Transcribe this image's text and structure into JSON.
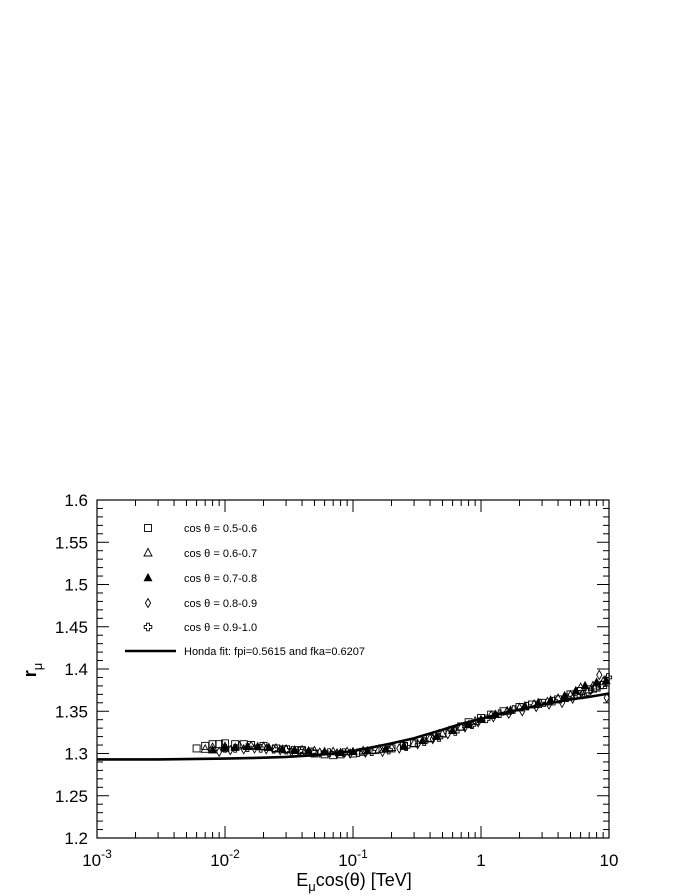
{
  "chart_data": {
    "type": "scatter",
    "x_scale": "log",
    "xlim": [
      0.001,
      10
    ],
    "ylim": [
      1.2,
      1.6
    ],
    "xlabel": {
      "main": "E",
      "sub": "μ",
      "rest": "cos(θ) [TeV]"
    },
    "ylabel": {
      "main": "r",
      "sub": "μ"
    },
    "x_tick_labels": [
      {
        "value": 0.001,
        "base": "10",
        "exp": "-3"
      },
      {
        "value": 0.01,
        "base": "10",
        "exp": "-2"
      },
      {
        "value": 0.1,
        "base": "10",
        "exp": "-1"
      },
      {
        "value": 1,
        "base": "1",
        "exp": ""
      },
      {
        "value": 10,
        "base": "10",
        "exp": ""
      }
    ],
    "y_tick_labels": [
      "1.2",
      "1.25",
      "1.3",
      "1.35",
      "1.4",
      "1.45",
      "1.5",
      "1.55",
      "1.6"
    ],
    "y_ticks": [
      1.2,
      1.25,
      1.3,
      1.35,
      1.4,
      1.45,
      1.5,
      1.55,
      1.6
    ],
    "legend": [
      {
        "marker": "open-square",
        "label": "cos θ = 0.5-0.6"
      },
      {
        "marker": "open-triangle",
        "label": "cos θ = 0.6-0.7"
      },
      {
        "marker": "filled-triangle",
        "label": "cos θ = 0.7-0.8"
      },
      {
        "marker": "open-diamond",
        "label": "cos θ = 0.8-0.9"
      },
      {
        "marker": "open-cross",
        "label": "cos θ = 0.9-1.0"
      },
      {
        "marker": "line",
        "label": "Honda fit: fpi=0.5615 and fka=0.6207"
      }
    ],
    "series": [
      {
        "marker": "open-square",
        "points": [
          [
            0.006,
            1.306
          ],
          [
            0.007,
            1.309
          ],
          [
            0.008,
            1.311
          ],
          [
            0.009,
            1.311
          ],
          [
            0.01,
            1.312
          ],
          [
            0.012,
            1.311
          ],
          [
            0.014,
            1.311
          ],
          [
            0.016,
            1.31
          ],
          [
            0.02,
            1.309
          ],
          [
            0.025,
            1.306
          ],
          [
            0.03,
            1.305
          ],
          [
            0.035,
            1.304
          ],
          [
            0.04,
            1.304
          ],
          [
            0.05,
            1.3
          ],
          [
            0.06,
            1.299
          ],
          [
            0.07,
            1.298
          ],
          [
            0.08,
            1.299
          ],
          [
            0.1,
            1.3
          ],
          [
            0.12,
            1.302
          ],
          [
            0.15,
            1.304
          ],
          [
            0.2,
            1.306
          ],
          [
            0.25,
            1.309
          ],
          [
            0.3,
            1.312
          ],
          [
            0.4,
            1.318
          ],
          [
            0.5,
            1.324
          ],
          [
            0.6,
            1.328
          ],
          [
            0.7,
            1.332
          ],
          [
            0.8,
            1.337
          ],
          [
            1.0,
            1.342
          ],
          [
            1.2,
            1.346
          ],
          [
            1.5,
            1.35
          ],
          [
            2.0,
            1.355
          ],
          [
            2.5,
            1.358
          ],
          [
            3.0,
            1.36
          ],
          [
            4.0,
            1.364
          ],
          [
            5.0,
            1.37
          ],
          [
            6.0,
            1.374
          ],
          [
            7.0,
            1.376
          ],
          [
            8.0,
            1.378
          ],
          [
            9.0,
            1.381
          ]
        ]
      },
      {
        "marker": "open-triangle",
        "points": [
          [
            0.007,
            1.305
          ],
          [
            0.008,
            1.307
          ],
          [
            0.01,
            1.308
          ],
          [
            0.013,
            1.309
          ],
          [
            0.016,
            1.309
          ],
          [
            0.02,
            1.308
          ],
          [
            0.025,
            1.306
          ],
          [
            0.03,
            1.305
          ],
          [
            0.04,
            1.304
          ],
          [
            0.05,
            1.303
          ],
          [
            0.07,
            1.302
          ],
          [
            0.09,
            1.302
          ],
          [
            0.12,
            1.303
          ],
          [
            0.16,
            1.305
          ],
          [
            0.2,
            1.307
          ],
          [
            0.3,
            1.312
          ],
          [
            0.4,
            1.318
          ],
          [
            0.5,
            1.323
          ],
          [
            0.7,
            1.331
          ],
          [
            0.9,
            1.338
          ],
          [
            1.2,
            1.345
          ],
          [
            1.6,
            1.35
          ],
          [
            2.0,
            1.354
          ],
          [
            2.6,
            1.358
          ],
          [
            3.3,
            1.361
          ],
          [
            4.0,
            1.365
          ],
          [
            5.0,
            1.369
          ],
          [
            6.0,
            1.378
          ],
          [
            7.5,
            1.38
          ],
          [
            9.0,
            1.385
          ]
        ]
      },
      {
        "marker": "filled-triangle",
        "points": [
          [
            0.008,
            1.304
          ],
          [
            0.01,
            1.306
          ],
          [
            0.012,
            1.307
          ],
          [
            0.015,
            1.308
          ],
          [
            0.018,
            1.308
          ],
          [
            0.022,
            1.307
          ],
          [
            0.028,
            1.305
          ],
          [
            0.035,
            1.304
          ],
          [
            0.045,
            1.303
          ],
          [
            0.06,
            1.302
          ],
          [
            0.08,
            1.301
          ],
          [
            0.1,
            1.302
          ],
          [
            0.13,
            1.303
          ],
          [
            0.18,
            1.305
          ],
          [
            0.25,
            1.309
          ],
          [
            0.35,
            1.315
          ],
          [
            0.45,
            1.32
          ],
          [
            0.6,
            1.327
          ],
          [
            0.8,
            1.334
          ],
          [
            1.0,
            1.34
          ],
          [
            1.3,
            1.346
          ],
          [
            1.7,
            1.351
          ],
          [
            2.2,
            1.356
          ],
          [
            2.8,
            1.36
          ],
          [
            3.5,
            1.363
          ],
          [
            4.5,
            1.368
          ],
          [
            5.5,
            1.374
          ],
          [
            6.5,
            1.38
          ],
          [
            8.0,
            1.384
          ],
          [
            9.5,
            1.386
          ]
        ]
      },
      {
        "marker": "open-diamond",
        "points": [
          [
            0.009,
            1.302
          ],
          [
            0.011,
            1.304
          ],
          [
            0.014,
            1.305
          ],
          [
            0.017,
            1.306
          ],
          [
            0.021,
            1.305
          ],
          [
            0.027,
            1.304
          ],
          [
            0.033,
            1.302
          ],
          [
            0.042,
            1.302
          ],
          [
            0.055,
            1.301
          ],
          [
            0.075,
            1.3
          ],
          [
            0.095,
            1.3
          ],
          [
            0.125,
            1.301
          ],
          [
            0.17,
            1.302
          ],
          [
            0.23,
            1.306
          ],
          [
            0.32,
            1.311
          ],
          [
            0.42,
            1.317
          ],
          [
            0.55,
            1.323
          ],
          [
            0.75,
            1.331
          ],
          [
            0.95,
            1.337
          ],
          [
            1.25,
            1.343
          ],
          [
            1.65,
            1.347
          ],
          [
            2.1,
            1.35
          ],
          [
            2.7,
            1.355
          ],
          [
            3.4,
            1.358
          ],
          [
            4.3,
            1.36
          ],
          [
            5.2,
            1.365
          ],
          [
            6.2,
            1.37
          ],
          [
            7.2,
            1.375
          ],
          [
            8.4,
            1.393
          ],
          [
            9.6,
            1.366
          ]
        ]
      },
      {
        "marker": "open-cross",
        "points": [
          [
            0.01,
            1.306
          ],
          [
            0.012,
            1.306
          ],
          [
            0.015,
            1.307
          ],
          [
            0.019,
            1.306
          ],
          [
            0.024,
            1.305
          ],
          [
            0.03,
            1.304
          ],
          [
            0.038,
            1.303
          ],
          [
            0.048,
            1.302
          ],
          [
            0.065,
            1.301
          ],
          [
            0.085,
            1.301
          ],
          [
            0.11,
            1.301
          ],
          [
            0.14,
            1.302
          ],
          [
            0.19,
            1.304
          ],
          [
            0.26,
            1.308
          ],
          [
            0.36,
            1.314
          ],
          [
            0.47,
            1.319
          ],
          [
            0.63,
            1.326
          ],
          [
            0.85,
            1.334
          ],
          [
            1.1,
            1.341
          ],
          [
            1.4,
            1.347
          ],
          [
            1.8,
            1.352
          ],
          [
            2.3,
            1.356
          ],
          [
            2.9,
            1.359
          ],
          [
            3.7,
            1.362
          ],
          [
            4.7,
            1.366
          ],
          [
            5.8,
            1.37
          ],
          [
            6.8,
            1.373
          ],
          [
            7.8,
            1.377
          ],
          [
            8.8,
            1.381
          ],
          [
            9.8,
            1.39
          ]
        ]
      }
    ],
    "fit_line": {
      "label": "Honda fit: fpi=0.5615 and fka=0.6207",
      "points": [
        [
          0.001,
          1.293
        ],
        [
          0.003,
          1.293
        ],
        [
          0.01,
          1.294
        ],
        [
          0.02,
          1.295
        ],
        [
          0.03,
          1.296
        ],
        [
          0.05,
          1.298
        ],
        [
          0.07,
          1.3
        ],
        [
          0.1,
          1.303
        ],
        [
          0.15,
          1.308
        ],
        [
          0.2,
          1.312
        ],
        [
          0.3,
          1.318
        ],
        [
          0.5,
          1.328
        ],
        [
          0.7,
          1.335
        ],
        [
          1.0,
          1.341
        ],
        [
          1.5,
          1.348
        ],
        [
          2.0,
          1.352
        ],
        [
          3.0,
          1.358
        ],
        [
          5.0,
          1.364
        ],
        [
          7.0,
          1.367
        ],
        [
          10.0,
          1.371
        ]
      ]
    }
  }
}
